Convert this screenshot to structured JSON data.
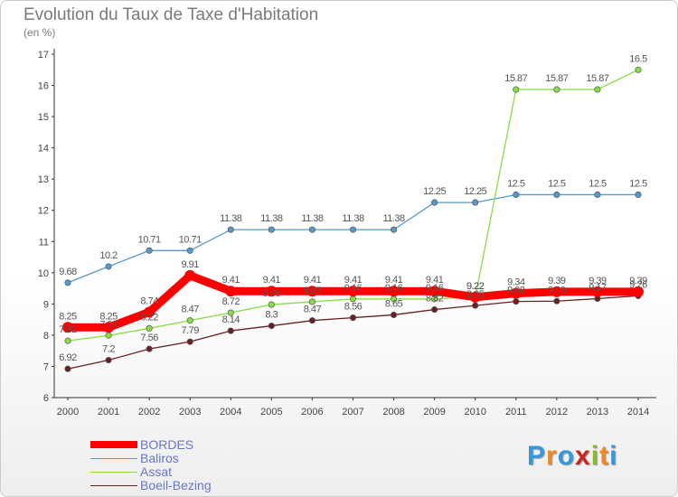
{
  "header": {
    "title": "Evolution du Taux de Taxe d'Habitation",
    "unit": "(en %)"
  },
  "chart_data": {
    "type": "line",
    "title": "Evolution du Taux de Taxe d'Habitation",
    "ylabel": "(en %)",
    "xlabel": "",
    "ylim": [
      6,
      17
    ],
    "yticks": [
      6,
      7,
      8,
      9,
      10,
      11,
      12,
      13,
      14,
      15,
      16,
      17
    ],
    "grid": false,
    "legend": "bottom-left",
    "x": [
      "2000",
      "2001",
      "2002",
      "2003",
      "2004",
      "2005",
      "2006",
      "2007",
      "2008",
      "2009",
      "2010",
      "2011",
      "2012",
      "2013",
      "2014"
    ],
    "series": [
      {
        "name": "BORDES",
        "color": "#ff0000",
        "values": [
          8.25,
          8.25,
          8.74,
          9.91,
          9.41,
          9.41,
          9.41,
          9.41,
          9.41,
          9.41,
          9.22,
          9.34,
          9.39,
          9.39,
          9.39
        ],
        "labels": [
          "8.25",
          "8.25",
          "8.74",
          "9.91",
          "9.41",
          "9.41",
          "9.41",
          "9.41",
          "9.41",
          "9.41",
          "9.22",
          "9.34",
          "9.39",
          "9.39",
          "9.39"
        ]
      },
      {
        "name": "Baliros",
        "color": "#5599cc",
        "values": [
          9.68,
          10.2,
          10.71,
          10.71,
          11.38,
          11.38,
          11.38,
          11.38,
          11.38,
          12.25,
          12.25,
          12.5,
          12.5,
          12.5,
          12.5
        ],
        "labels": [
          "9.68",
          "10.2",
          "10.71",
          "10.71",
          "11.38",
          "11.38",
          "11.38",
          "11.38",
          "11.38",
          "12.25",
          "12.25",
          "12.5",
          "12.5",
          "12.5",
          "12.5"
        ]
      },
      {
        "name": "Assat",
        "color": "#88dd44",
        "values": [
          7.82,
          7.99,
          8.22,
          8.47,
          8.72,
          8.98,
          9.07,
          9.16,
          9.16,
          9.16,
          9.22,
          15.87,
          15.87,
          15.87,
          16.5
        ],
        "labels": [
          "7.82",
          "7.99",
          "8.22",
          "8.47",
          "8.72",
          "8.98",
          "9.07",
          "9.16",
          "9.16",
          "9.16",
          "9.22",
          "15.87",
          "15.87",
          "15.87",
          "16.5"
        ]
      },
      {
        "name": "Boeil-Bezing",
        "color": "#662222",
        "values": [
          6.92,
          7.2,
          7.56,
          7.79,
          8.14,
          8.3,
          8.47,
          8.56,
          8.65,
          8.82,
          8.95,
          9.08,
          9.09,
          9.17,
          9.26
        ],
        "labels": [
          "6.92",
          "7.2",
          "7.56",
          "7.79",
          "8.14",
          "8.3",
          "8.47",
          "8.56",
          "8.65",
          "8.82",
          "8.95",
          "9.08",
          "9.09",
          "9.17",
          "9.26"
        ]
      }
    ]
  },
  "legend": {
    "items": [
      {
        "label": "BORDES",
        "color": "#ff0000"
      },
      {
        "label": "Baliros",
        "color": "#5599cc"
      },
      {
        "label": "Assat",
        "color": "#88dd44"
      },
      {
        "label": "Boeil-Bezing",
        "color": "#662222"
      }
    ]
  },
  "logo": {
    "letters": [
      "P",
      "r",
      "o",
      "x",
      "i",
      "t",
      "i"
    ],
    "colors": [
      "#3399dd",
      "#ee8822",
      "#3399dd",
      "#cc2222",
      "#88bb22",
      "#ee8822",
      "#3399dd"
    ]
  }
}
